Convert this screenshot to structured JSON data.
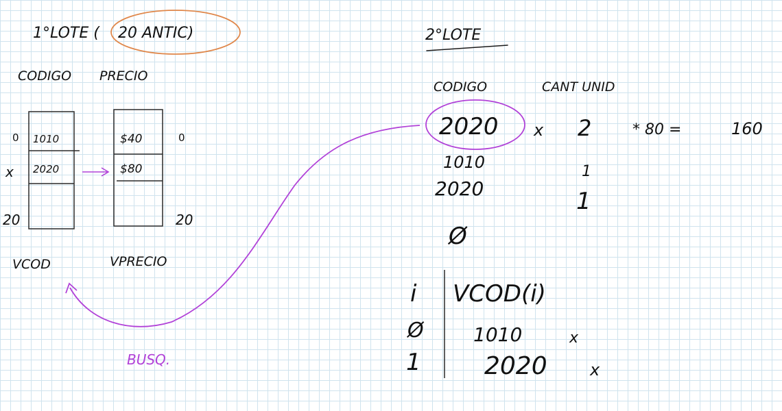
{
  "colors": {
    "ink": "#111111",
    "highlight_orange": "#e0874a",
    "highlight_purple": "#b142d8",
    "grid": "#cfe3ee"
  },
  "lote1": {
    "title": "1°LOTE (",
    "circled": "20 ANTIC)",
    "col_codigo": "CODIGO",
    "col_precio": "PRECIO",
    "vcod": {
      "cells": [
        "1010",
        "2020"
      ],
      "label": "VCOD"
    },
    "vprecio": {
      "cells": [
        "$40",
        "$80"
      ],
      "label": "VPRECIO"
    },
    "index_top": "0",
    "index_mid": "x",
    "index_bottom": "20",
    "index_top_right": "0",
    "index_bottom_right": "20"
  },
  "lote2": {
    "title": "2°LOTE",
    "col_codigo": "CODIGO",
    "col_cant": "CANT UNID",
    "row1": {
      "code": "2020",
      "mult": "x",
      "qty": "2",
      "expr": "* 80 =",
      "result": "160"
    },
    "rows": [
      {
        "code": "1010",
        "qty": "1"
      },
      {
        "code": "2020",
        "qty": "1"
      }
    ],
    "end_mark": "Ø"
  },
  "search_note": "BUSQ.",
  "lookup_table": {
    "header_i": "i",
    "header_vcod": "VCOD(i)",
    "rows": [
      {
        "i": "Ø",
        "vcod": "1010",
        "mark": "x"
      },
      {
        "i": "1",
        "vcod": "2020",
        "mark": "x"
      }
    ]
  }
}
